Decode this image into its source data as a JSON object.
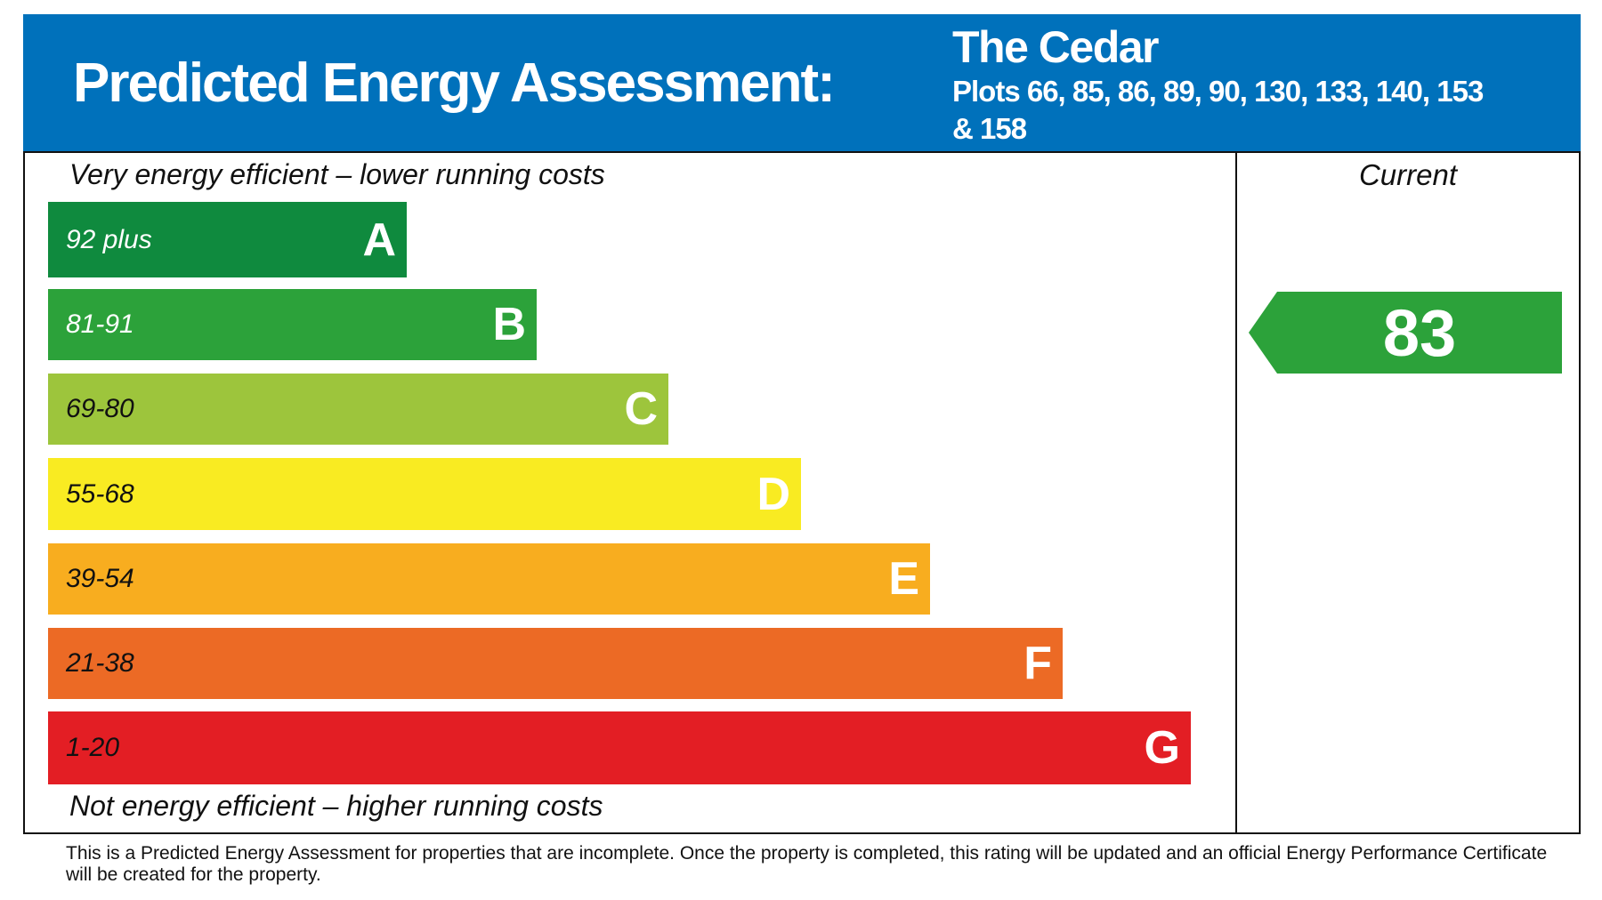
{
  "header": {
    "title": "Predicted Energy Assessment:",
    "property_name": "The Cedar",
    "plots": "Plots 66, 85, 86, 89, 90, 130, 133, 140, 153 & 158",
    "background_color": "#0071bb"
  },
  "scale": {
    "top_label": "Very energy efficient – lower running costs",
    "bottom_label": "Not energy efficient – higher running costs",
    "bands": [
      {
        "range": "92 plus",
        "letter": "A",
        "color": "#0f8a3e",
        "text_color": "#ffffff"
      },
      {
        "range": "81-91",
        "letter": "B",
        "color": "#2ca23a",
        "text_color": "#ffffff"
      },
      {
        "range": "69-80",
        "letter": "C",
        "color": "#9dc53c",
        "text_color": "#111111"
      },
      {
        "range": "55-68",
        "letter": "D",
        "color": "#f9eb22",
        "text_color": "#111111"
      },
      {
        "range": "39-54",
        "letter": "E",
        "color": "#f8ad1f",
        "text_color": "#111111"
      },
      {
        "range": "21-38",
        "letter": "F",
        "color": "#ec6a25",
        "text_color": "#111111"
      },
      {
        "range": "1-20",
        "letter": "G",
        "color": "#e31e24",
        "text_color": "#111111"
      }
    ]
  },
  "current": {
    "label": "Current",
    "value": "83",
    "band": "B",
    "color": "#2ca23a"
  },
  "footnote": "This is a Predicted Energy Assessment for properties that are incomplete. Once the property is completed, this rating will be updated and an official Energy Performance Certificate will be created for the property."
}
